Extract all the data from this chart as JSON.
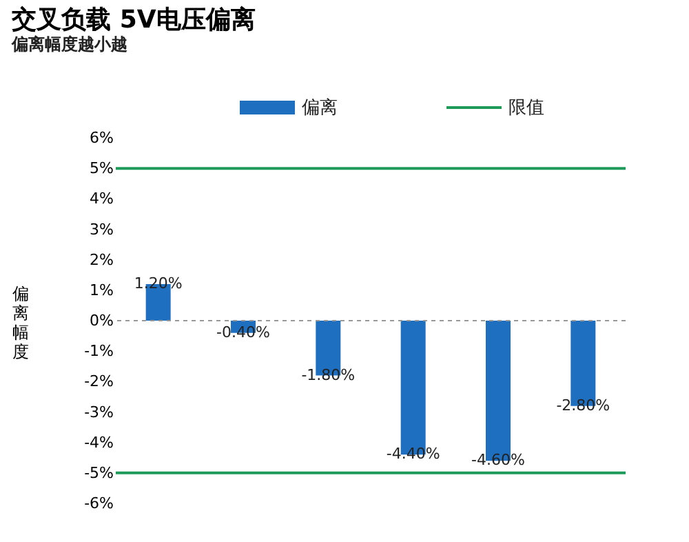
{
  "chart_data": {
    "type": "bar",
    "title": "交叉负载 5V电压偏离",
    "subtitle": "偏离幅度越小越",
    "ylabel": "偏离幅度",
    "categories": [
      null,
      null,
      null,
      null,
      null,
      null
    ],
    "series": [
      {
        "name": "偏离",
        "color": "#1f6fc1",
        "values": [
          1.2,
          -0.4,
          -1.8,
          -4.4,
          -4.6,
          -2.8
        ],
        "value_labels": [
          "1.20%",
          "-0.40%",
          "-1.80%",
          "-4.40%",
          "-4.60%",
          "-2.80%"
        ]
      }
    ],
    "ref_lines": [
      {
        "axis": "y",
        "value": 0,
        "color": "#999999",
        "line_style": "dashed"
      },
      {
        "axis": "y",
        "value": 5,
        "label": "限值",
        "color": "#1e9a5a"
      },
      {
        "axis": "y",
        "value": -5,
        "color": "#1e9a5a"
      }
    ],
    "ylim": [
      -6,
      6
    ],
    "yticks": [
      {
        "value": -6,
        "label": "-6%"
      },
      {
        "value": -5,
        "label": "-5%"
      },
      {
        "value": -4,
        "label": "-4%"
      },
      {
        "value": -3,
        "label": "-3%"
      },
      {
        "value": -2,
        "label": "-2%"
      },
      {
        "value": -1,
        "label": "-1%"
      },
      {
        "value": 0,
        "label": "0%"
      },
      {
        "value": 1,
        "label": "1%"
      },
      {
        "value": 2,
        "label": "2%"
      },
      {
        "value": 3,
        "label": "3%"
      },
      {
        "value": 4,
        "label": "4%"
      },
      {
        "value": 5,
        "label": "5%"
      },
      {
        "value": 6,
        "label": "6%"
      }
    ],
    "tick_labels": "y",
    "grid": false,
    "legend": "top"
  }
}
